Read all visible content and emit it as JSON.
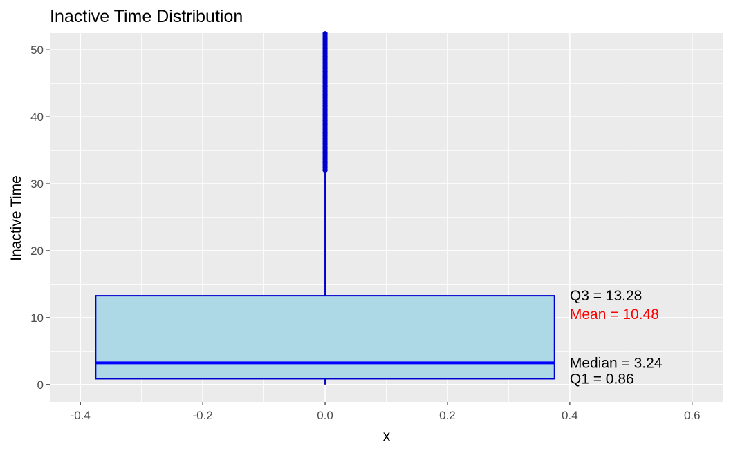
{
  "chart_data": {
    "type": "boxplot",
    "title": "Inactive Time Distribution",
    "xlabel": "x",
    "ylabel": "Inactive Time",
    "xlim": [
      -0.45,
      0.65
    ],
    "ylim": [
      -2.6,
      52.5
    ],
    "x_ticks": [
      -0.4,
      -0.2,
      0.0,
      0.2,
      0.4,
      0.6
    ],
    "x_tick_labels": [
      "-0.4",
      "-0.2",
      "0.0",
      "0.2",
      "0.4",
      "0.6"
    ],
    "y_ticks": [
      0,
      10,
      20,
      30,
      40,
      50
    ],
    "y_tick_labels": [
      "0",
      "10",
      "20",
      "30",
      "40",
      "50"
    ],
    "grid": true,
    "box": {
      "x": 0.0,
      "x_range": [
        -0.375,
        0.375
      ],
      "q1": 0.86,
      "median": 3.24,
      "q3": 13.28,
      "whisker_low": 0.0,
      "whisker_high": 32.0,
      "outlier_range": [
        32.0,
        52.5
      ]
    },
    "annotations": [
      {
        "text": "Q3 = 13.28",
        "x": 0.4,
        "y": 13.28,
        "color": "#000000"
      },
      {
        "text": "Mean = 10.48",
        "x": 0.4,
        "y": 10.48,
        "color": "#ff0000"
      },
      {
        "text": "Median = 3.24",
        "x": 0.4,
        "y": 3.24,
        "color": "#000000"
      },
      {
        "text": "Q1 = 0.86",
        "x": 0.4,
        "y": 0.86,
        "color": "#000000"
      }
    ],
    "colors": {
      "panel_bg": "#ebebeb",
      "grid": "#ffffff",
      "box_fill": "#add8e6",
      "box_stroke": "#0000cd",
      "median_line": "#0000ff",
      "outliers": "#0000cd"
    }
  }
}
